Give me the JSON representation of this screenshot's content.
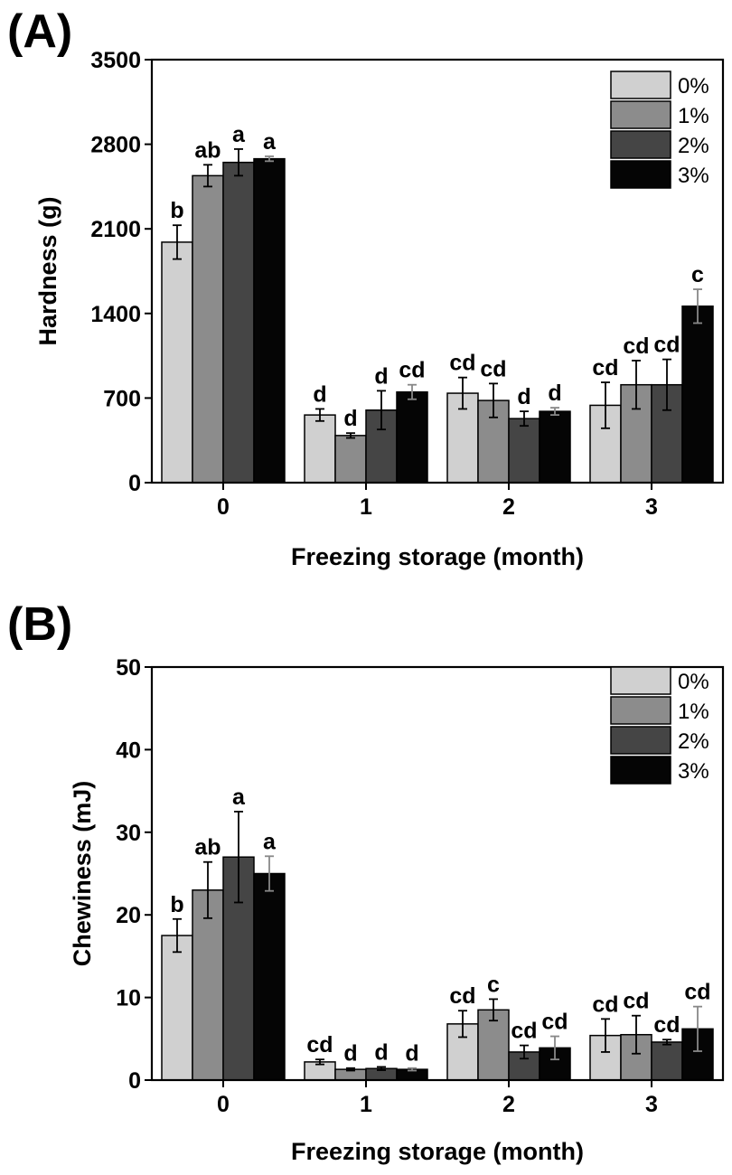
{
  "chart_data": [
    {
      "panel_label": "(A)",
      "type": "bar",
      "xlabel": "Freezing storage (month)",
      "ylabel": "Hardness (g)",
      "ylim": [
        0,
        3500
      ],
      "yticks": [
        0,
        700,
        1400,
        2100,
        2800,
        3500
      ],
      "categories": [
        "0",
        "1",
        "2",
        "3"
      ],
      "legend_position": "top-right",
      "series": [
        {
          "name": "0%",
          "color": "#d0d0d0",
          "values": [
            1990,
            560,
            740,
            640
          ],
          "errors": [
            140,
            50,
            130,
            190
          ],
          "labels": [
            "b",
            "d",
            "cd",
            "cd"
          ]
        },
        {
          "name": "1%",
          "color": "#8c8c8c",
          "values": [
            2540,
            390,
            680,
            810
          ],
          "errors": [
            90,
            20,
            140,
            200
          ],
          "labels": [
            "ab",
            "d",
            "cd",
            "cd"
          ]
        },
        {
          "name": "2%",
          "color": "#454545",
          "values": [
            2650,
            600,
            530,
            810
          ],
          "errors": [
            110,
            160,
            60,
            210
          ],
          "labels": [
            "a",
            "d",
            "d",
            "cd"
          ]
        },
        {
          "name": "3%",
          "color": "#050505",
          "values": [
            2680,
            750,
            590,
            1460
          ],
          "errors": [
            20,
            60,
            30,
            140
          ],
          "labels": [
            "a",
            "cd",
            "d",
            "c"
          ]
        }
      ]
    },
    {
      "panel_label": "(B)",
      "type": "bar",
      "xlabel": "Freezing storage (month)",
      "ylabel": "Chewiness (mJ)",
      "ylim": [
        0,
        50
      ],
      "yticks": [
        0,
        10,
        20,
        30,
        40,
        50
      ],
      "categories": [
        "0",
        "1",
        "2",
        "3"
      ],
      "legend_position": "top-right",
      "series": [
        {
          "name": "0%",
          "color": "#d0d0d0",
          "values": [
            17.5,
            2.2,
            6.8,
            5.4
          ],
          "errors": [
            2.0,
            0.3,
            1.6,
            2.0
          ],
          "labels": [
            "b",
            "cd",
            "cd",
            "cd"
          ]
        },
        {
          "name": "1%",
          "color": "#8c8c8c",
          "values": [
            23.0,
            1.3,
            8.5,
            5.5
          ],
          "errors": [
            3.4,
            0.15,
            1.3,
            2.3
          ],
          "labels": [
            "ab",
            "d",
            "c",
            "cd"
          ]
        },
        {
          "name": "2%",
          "color": "#454545",
          "values": [
            27.0,
            1.4,
            3.4,
            4.6
          ],
          "errors": [
            5.5,
            0.2,
            0.8,
            0.3
          ],
          "labels": [
            "a",
            "d",
            "cd",
            "cd"
          ]
        },
        {
          "name": "3%",
          "color": "#050505",
          "values": [
            25.0,
            1.3,
            3.9,
            6.2
          ],
          "errors": [
            2.1,
            0.15,
            1.4,
            2.7
          ],
          "labels": [
            "a",
            "d",
            "cd",
            "cd"
          ]
        }
      ]
    }
  ]
}
